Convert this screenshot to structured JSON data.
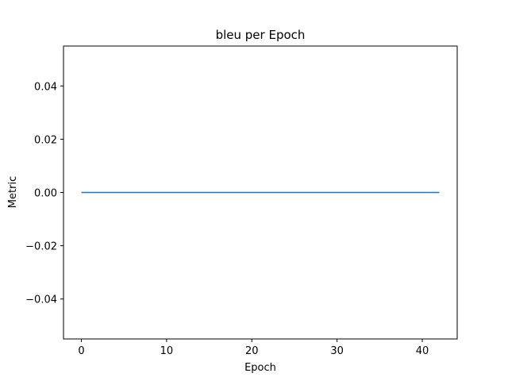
{
  "chart_data": {
    "type": "line",
    "title": "bleu per Epoch",
    "xlabel": "Epoch",
    "ylabel": "Metric",
    "xlim": [
      -2.1,
      44.1
    ],
    "ylim": [
      -0.055,
      0.055
    ],
    "x_ticks": [
      0,
      10,
      20,
      30,
      40
    ],
    "x_tick_labels": [
      "0",
      "10",
      "20",
      "30",
      "40"
    ],
    "y_ticks": [
      -0.04,
      -0.02,
      0.0,
      0.02,
      0.04
    ],
    "y_tick_labels": [
      "−0.04",
      "−0.02",
      "0.00",
      "0.02",
      "0.04"
    ],
    "grid": false,
    "series": [
      {
        "color": "#1f77b4",
        "x": [
          0,
          1,
          2,
          3,
          4,
          5,
          6,
          7,
          8,
          9,
          10,
          11,
          12,
          13,
          14,
          15,
          16,
          17,
          18,
          19,
          20,
          21,
          22,
          23,
          24,
          25,
          26,
          27,
          28,
          29,
          30,
          31,
          32,
          33,
          34,
          35,
          36,
          37,
          38,
          39,
          40,
          41,
          42
        ],
        "values": [
          0,
          0,
          0,
          0,
          0,
          0,
          0,
          0,
          0,
          0,
          0,
          0,
          0,
          0,
          0,
          0,
          0,
          0,
          0,
          0,
          0,
          0,
          0,
          0,
          0,
          0,
          0,
          0,
          0,
          0,
          0,
          0,
          0,
          0,
          0,
          0,
          0,
          0,
          0,
          0,
          0,
          0,
          0
        ]
      }
    ]
  }
}
